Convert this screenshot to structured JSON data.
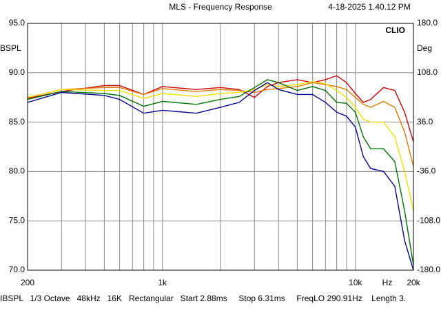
{
  "chart_data": {
    "type": "line",
    "title": "MLS - Frequency Response",
    "timestamp": "4-18-2025 1.40.12 PM",
    "brand": "CLIO",
    "y_label": "BSPL",
    "y2_label": "Deg",
    "x_unit": "Hz",
    "footer": "IBSPL   1/3 Octave   48kHz   16K   Rectangular   Start 2.88ms     Stop 6.31ms     FreqLO 290.91Hz    Length 3.",
    "xscale": "log",
    "xlim": [
      200,
      20000
    ],
    "xticks": [
      200,
      {
        "value": 1000,
        "label": "1k"
      },
      {
        "value": 10000,
        "label": "10k"
      },
      {
        "value": 20000,
        "label": "20k"
      }
    ],
    "xminor": [
      300,
      400,
      500,
      600,
      700,
      800,
      900,
      2000,
      3000,
      4000,
      5000,
      6000,
      7000,
      8000,
      9000
    ],
    "ylim": [
      70,
      95
    ],
    "yticks": [
      {
        "value": 95,
        "label": "95.0"
      },
      {
        "value": 90,
        "label": "90.0"
      },
      {
        "value": 85,
        "label": "85.0"
      },
      {
        "value": 80,
        "label": "80.0"
      },
      {
        "value": 75,
        "label": "75.0"
      },
      {
        "value": 70,
        "label": "70.0"
      }
    ],
    "y2lim": [
      -180,
      180
    ],
    "y2ticks": [
      {
        "value": 180,
        "label": "180.0"
      },
      {
        "value": 108,
        "label": "108.0"
      },
      {
        "value": 36,
        "label": "36.0"
      },
      {
        "value": -36,
        "label": "-36.0"
      },
      {
        "value": -108,
        "label": "-108.0"
      },
      {
        "value": -180,
        "label": "-180.0"
      }
    ],
    "grid": true,
    "x": [
      200,
      300,
      500,
      600,
      800,
      1000,
      1500,
      2000,
      2500,
      3000,
      3500,
      4000,
      5000,
      6000,
      7000,
      8000,
      9000,
      10000,
      11000,
      12000,
      14000,
      16000,
      18000,
      20000
    ],
    "series": [
      {
        "color": "#cc0000",
        "values": [
          87.4,
          88.1,
          88.7,
          88.7,
          87.8,
          88.6,
          88.3,
          88.5,
          88.3,
          87.5,
          88.6,
          89.0,
          89.3,
          89.0,
          89.3,
          89.7,
          89.0,
          87.9,
          87.0,
          87.3,
          88.5,
          88.2,
          86.0,
          83.0
        ]
      },
      {
        "color": "#e07800",
        "values": [
          87.5,
          88.3,
          88.5,
          88.5,
          87.8,
          88.4,
          88.1,
          88.3,
          88.2,
          88.0,
          88.3,
          88.4,
          88.6,
          89.0,
          88.8,
          88.6,
          88.3,
          87.5,
          86.8,
          86.5,
          87.1,
          86.5,
          84.0,
          80.5
        ]
      },
      {
        "color": "#f0e000",
        "values": [
          87.5,
          88.3,
          88.2,
          88.2,
          87.4,
          87.9,
          87.6,
          87.9,
          88.0,
          88.3,
          88.8,
          88.6,
          88.8,
          89.1,
          88.9,
          88.2,
          87.5,
          86.5,
          85.3,
          85.0,
          85.0,
          83.5,
          80.0,
          76.0
        ]
      },
      {
        "color": "#007000",
        "values": [
          87.3,
          88.1,
          87.9,
          87.7,
          86.6,
          87.1,
          86.8,
          87.3,
          87.6,
          88.5,
          89.3,
          89.0,
          88.2,
          88.6,
          88.2,
          87.0,
          86.9,
          86.0,
          83.5,
          82.3,
          82.3,
          81.0,
          76.0,
          70.5
        ]
      },
      {
        "color": "#000090",
        "values": [
          87.0,
          88.0,
          87.7,
          87.3,
          85.9,
          86.2,
          85.9,
          86.5,
          87.0,
          88.2,
          89.0,
          88.3,
          87.8,
          87.8,
          87.0,
          86.0,
          85.6,
          84.5,
          81.5,
          80.3,
          80.0,
          78.5,
          73.0,
          70.0
        ]
      }
    ]
  }
}
